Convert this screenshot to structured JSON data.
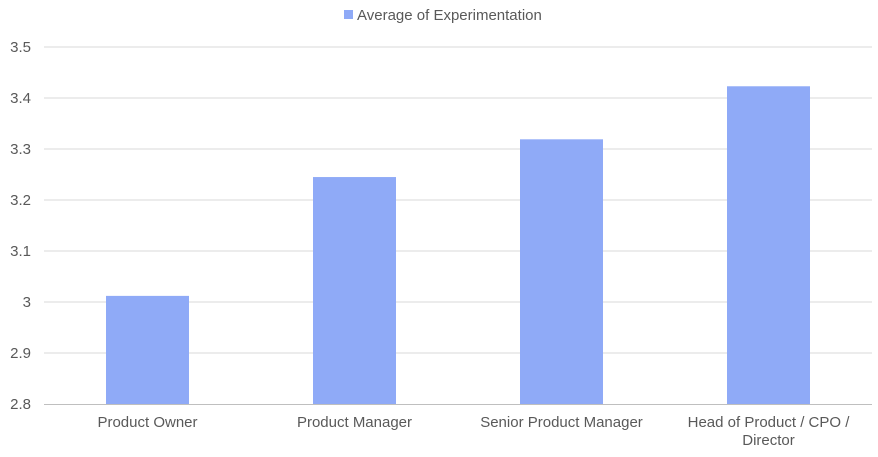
{
  "chart_data": {
    "type": "bar",
    "categories": [
      "Product Owner",
      "Product Manager",
      "Senior Product Manager",
      "Head of Product / CPO / Director"
    ],
    "series": [
      {
        "name": "Average of Experimentation",
        "values": [
          3.012,
          3.245,
          3.319,
          3.423
        ],
        "color": "#8faaf7"
      }
    ],
    "ylim": [
      2.8,
      3.5
    ],
    "yticks": [
      "2.8",
      "2.9",
      "3",
      "3.1",
      "3.2",
      "3.3",
      "3.4",
      "3.5"
    ],
    "grid": true,
    "legend": "top-center",
    "gridline_color": "#d9d9d9",
    "axis_color": "#bfbfbf",
    "text_color": "#595959"
  }
}
